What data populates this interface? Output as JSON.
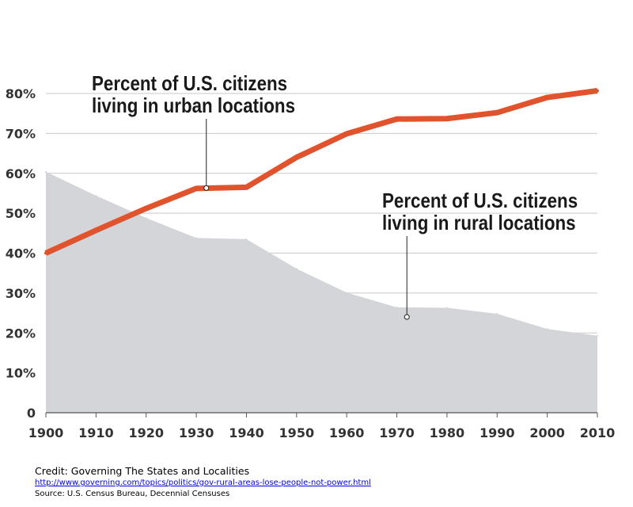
{
  "chart_data": {
    "type": "area",
    "x": [
      1900,
      1910,
      1920,
      1930,
      1940,
      1950,
      1960,
      1970,
      1980,
      1990,
      2000,
      2010
    ],
    "ylim": [
      0,
      80
    ],
    "y_ticks": [
      "0",
      "10%",
      "20%",
      "30%",
      "40%",
      "50%",
      "60%",
      "70%",
      "80%"
    ],
    "y_tick_values": [
      0,
      10,
      20,
      30,
      40,
      50,
      60,
      70,
      80
    ],
    "x_ticks": [
      "1900",
      "1910",
      "1920",
      "1930",
      "1940",
      "1950",
      "1960",
      "1970",
      "1980",
      "1990",
      "2000",
      "2010"
    ],
    "grid": "horizontal",
    "series": [
      {
        "name": "Percent of U.S. citizens living in urban locations",
        "type": "line",
        "color": "#e0532d",
        "values": [
          40,
          45.7,
          51.2,
          56.2,
          56.5,
          64,
          69.9,
          73.6,
          73.7,
          75.2,
          79,
          80.7
        ]
      },
      {
        "name": "Percent of U.S. citizens living in rural locations",
        "type": "area",
        "color": "#d4d5d8",
        "values": [
          60.4,
          54.4,
          48.8,
          43.8,
          43.5,
          36.1,
          30.1,
          26.4,
          26.3,
          24.8,
          21,
          19.3
        ]
      }
    ],
    "annotations": [
      {
        "line1": "Percent of U.S. citizens",
        "line2": "living in urban locations",
        "x": 1932,
        "y": 56.3
      },
      {
        "line1": "Percent of U.S. citizens",
        "line2": "living in rural locations",
        "x": 1972,
        "y": 24
      }
    ]
  },
  "footer": {
    "credit": "Credit: Governing The States and Localities",
    "url": "http://www.governing.com/topics/politics/gov-rural-areas-lose-people-not-power.html",
    "source": "Source: U.S. Census Bureau, Decennial Censuses"
  }
}
